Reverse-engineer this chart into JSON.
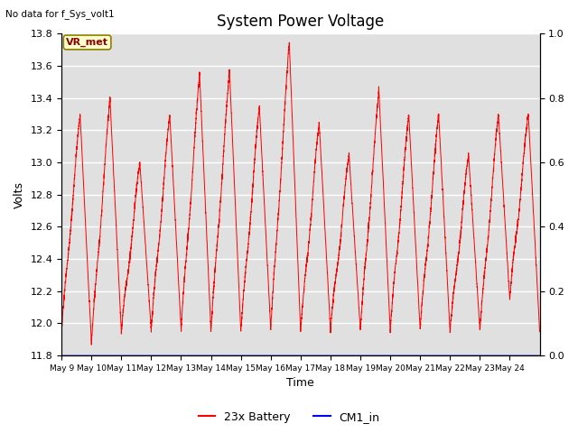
{
  "title": "System Power Voltage",
  "no_data_label": "No data for f_Sys_volt1",
  "ylabel_left": "Volts",
  "xlabel": "Time",
  "ylim_left": [
    11.8,
    13.8
  ],
  "ylim_right": [
    0.0,
    1.0
  ],
  "x_tick_labels": [
    "May 9",
    "May 10",
    "May 11",
    "May 12",
    "May 13",
    "May 14",
    "May 15",
    "May 16",
    "May 17",
    "May 18",
    "May 19",
    "May 20",
    "May 21",
    "May 22",
    "May 23",
    "May 24"
  ],
  "vr_met_label": "VR_met",
  "legend_entries": [
    "23x Battery",
    "CM1_in"
  ],
  "bg_color": "#e0e0e0",
  "line_color_battery": "red",
  "line_color_cm1": "blue",
  "title_fontsize": 12,
  "axis_fontsize": 9,
  "tick_fontsize": 8,
  "n_days": 16,
  "peaks": [
    13.3,
    13.4,
    13.0,
    13.3,
    13.55,
    13.57,
    13.35,
    13.75,
    13.25,
    13.05,
    13.45,
    13.3,
    13.3,
    13.05,
    13.3,
    13.3
  ],
  "troughs": [
    11.95,
    11.88,
    11.95,
    11.96,
    11.96,
    11.95,
    11.95,
    11.96,
    11.95,
    11.96,
    11.96,
    11.96,
    11.96,
    11.95,
    11.96,
    12.15
  ]
}
